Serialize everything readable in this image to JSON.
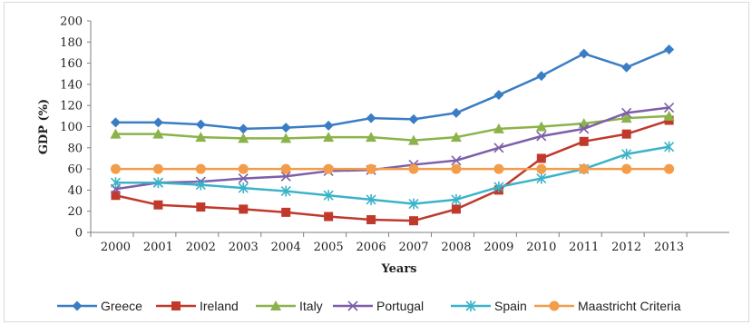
{
  "chart_data": {
    "type": "line",
    "title": "",
    "xlabel": "Years",
    "ylabel": "GDP (%)",
    "categories": [
      "2000",
      "2001",
      "2002",
      "2003",
      "2004",
      "2005",
      "2006",
      "2007",
      "2008",
      "2009",
      "2010",
      "2011",
      "2012",
      "2013"
    ],
    "ylim": [
      0,
      200
    ],
    "yticks": [
      0,
      20,
      40,
      60,
      80,
      100,
      120,
      140,
      160,
      180,
      200
    ],
    "grid": false,
    "legend_position": "bottom",
    "series": [
      {
        "name": "Greece",
        "color": "#3a7dc4",
        "marker": "diamond",
        "values": [
          104,
          104,
          102,
          98,
          99,
          101,
          108,
          107,
          113,
          130,
          148,
          169,
          156,
          173
        ]
      },
      {
        "name": "Ireland",
        "color": "#c0392b",
        "marker": "square",
        "values": [
          35,
          26,
          24,
          22,
          19,
          15,
          12,
          11,
          22,
          40,
          70,
          86,
          93,
          106
        ]
      },
      {
        "name": "Italy",
        "color": "#8bb34a",
        "marker": "triangle",
        "values": [
          93,
          93,
          90,
          89,
          89,
          90,
          90,
          87,
          90,
          98,
          100,
          103,
          108,
          110
        ]
      },
      {
        "name": "Portugal",
        "color": "#7d5ea8",
        "marker": "x",
        "values": [
          41,
          47,
          48,
          51,
          53,
          58,
          59,
          64,
          68,
          80,
          91,
          98,
          113,
          118
        ]
      },
      {
        "name": "Spain",
        "color": "#3ab3c9",
        "marker": "star",
        "values": [
          47,
          47,
          45,
          42,
          39,
          35,
          31,
          27,
          31,
          43,
          51,
          60,
          74,
          81
        ]
      },
      {
        "name": "Maastricht Criteria",
        "color": "#f39c4a",
        "marker": "circle",
        "values": [
          60,
          60,
          60,
          60,
          60,
          60,
          60,
          60,
          60,
          60,
          60,
          60,
          60,
          60
        ]
      }
    ]
  }
}
